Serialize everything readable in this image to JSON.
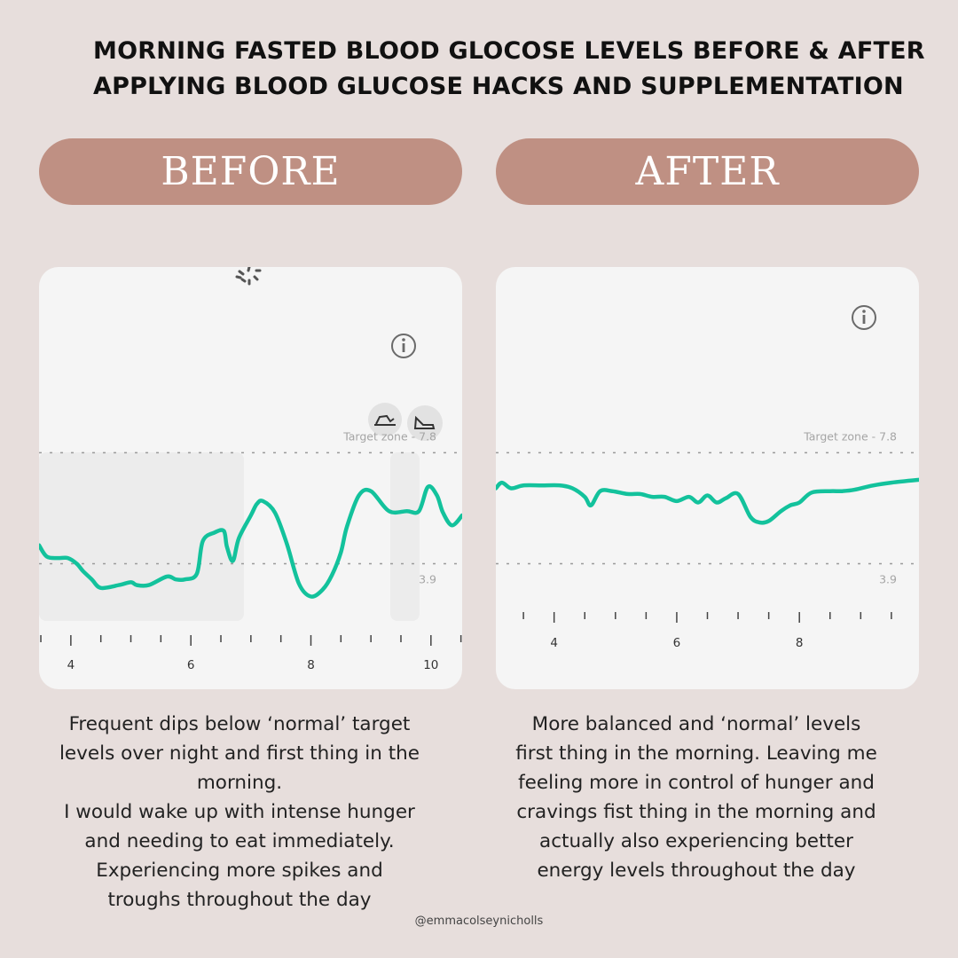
{
  "title": {
    "line1": "MORNING FASTED BLOOD GLOCOSE LEVELS BEFORE & AFTER",
    "line2": "APPLYING BLOOD GLUCOSE HACKS AND SUPPLEMENTATION"
  },
  "labels": {
    "before": "BEFORE",
    "after": "AFTER"
  },
  "before_caption": [
    "Frequent dips below ‘normal’ target",
    "levels over night and first thing in the",
    "morning.",
    "I would wake up with intense hunger",
    "and needing to eat immediately.",
    "Experiencing more spikes and",
    "troughs throughout the day"
  ],
  "after_caption": [
    "More balanced and ‘normal’ levels",
    "first thing in the morning. Leaving me",
    "feeling more in control of hunger and",
    "cravings fist thing in the morning and",
    "actually also experiencing better",
    "energy levels throughout the day"
  ],
  "handle": "@emmacolseynicholls",
  "colors": {
    "line": "#13c29c",
    "pill": "#bf9083",
    "background": "#e7dedc",
    "card": "#f5f5f5"
  },
  "chart_data": [
    {
      "type": "line",
      "panel": "before",
      "target_zone_label": "Target zone - 7.8",
      "lower_label": "3.9",
      "target_upper": 7.8,
      "target_lower": 3.9,
      "x_ticks": [
        "4",
        "6",
        "8",
        "10"
      ],
      "x_tick_values": [
        4,
        6,
        8,
        10
      ],
      "xlim": [
        3.47,
        10.52
      ],
      "ylim": [
        1.83,
        9.4
      ],
      "series": [
        {
          "x": [
            3.47,
            3.6,
            3.8,
            3.95,
            4.1,
            4.2,
            4.35,
            4.5,
            4.8,
            5.0,
            5.1,
            5.3,
            5.6,
            5.75,
            5.9,
            6.1,
            6.2,
            6.4,
            6.55,
            6.6,
            6.7,
            6.8,
            7.0,
            7.1,
            7.2,
            7.4,
            7.6,
            7.8,
            8.0,
            8.2,
            8.35,
            8.5,
            8.6,
            8.8,
            9.0,
            9.3,
            9.6,
            9.8,
            9.95,
            10.1,
            10.2,
            10.35,
            10.52
          ],
          "y": [
            4.55,
            4.15,
            4.1,
            4.1,
            3.9,
            3.65,
            3.35,
            3.05,
            3.15,
            3.25,
            3.15,
            3.15,
            3.45,
            3.35,
            3.35,
            3.55,
            4.7,
            5.0,
            5.05,
            4.5,
            4.0,
            4.8,
            5.6,
            6.0,
            6.1,
            5.7,
            4.6,
            3.2,
            2.75,
            3.0,
            3.5,
            4.3,
            5.2,
            6.3,
            6.45,
            5.75,
            5.75,
            5.75,
            6.6,
            6.3,
            5.7,
            5.25,
            5.6
          ]
        }
      ]
    },
    {
      "type": "line",
      "panel": "after",
      "target_zone_label": "Target zone - 7.8",
      "lower_label": "3.9",
      "target_upper": 7.8,
      "target_lower": 3.9,
      "x_ticks": [
        "4",
        "6",
        "8"
      ],
      "x_tick_values": [
        4,
        6,
        8
      ],
      "xlim": [
        3.05,
        9.95
      ],
      "ylim": [
        1.83,
        9.4
      ],
      "series": [
        {
          "x": [
            3.05,
            3.15,
            3.3,
            3.5,
            3.8,
            4.1,
            4.3,
            4.5,
            4.6,
            4.75,
            4.95,
            5.2,
            5.4,
            5.6,
            5.8,
            6.0,
            6.2,
            6.35,
            6.5,
            6.65,
            6.8,
            7.0,
            7.2,
            7.35,
            7.5,
            7.7,
            7.85,
            8.0,
            8.2,
            8.5,
            8.7,
            8.9,
            9.2,
            9.5,
            9.95
          ],
          "y": [
            6.55,
            6.75,
            6.55,
            6.65,
            6.65,
            6.65,
            6.55,
            6.25,
            5.95,
            6.45,
            6.45,
            6.35,
            6.35,
            6.25,
            6.25,
            6.1,
            6.25,
            6.05,
            6.3,
            6.05,
            6.2,
            6.35,
            5.55,
            5.35,
            5.4,
            5.75,
            5.95,
            6.05,
            6.4,
            6.45,
            6.45,
            6.5,
            6.65,
            6.75,
            6.85
          ]
        }
      ]
    }
  ]
}
